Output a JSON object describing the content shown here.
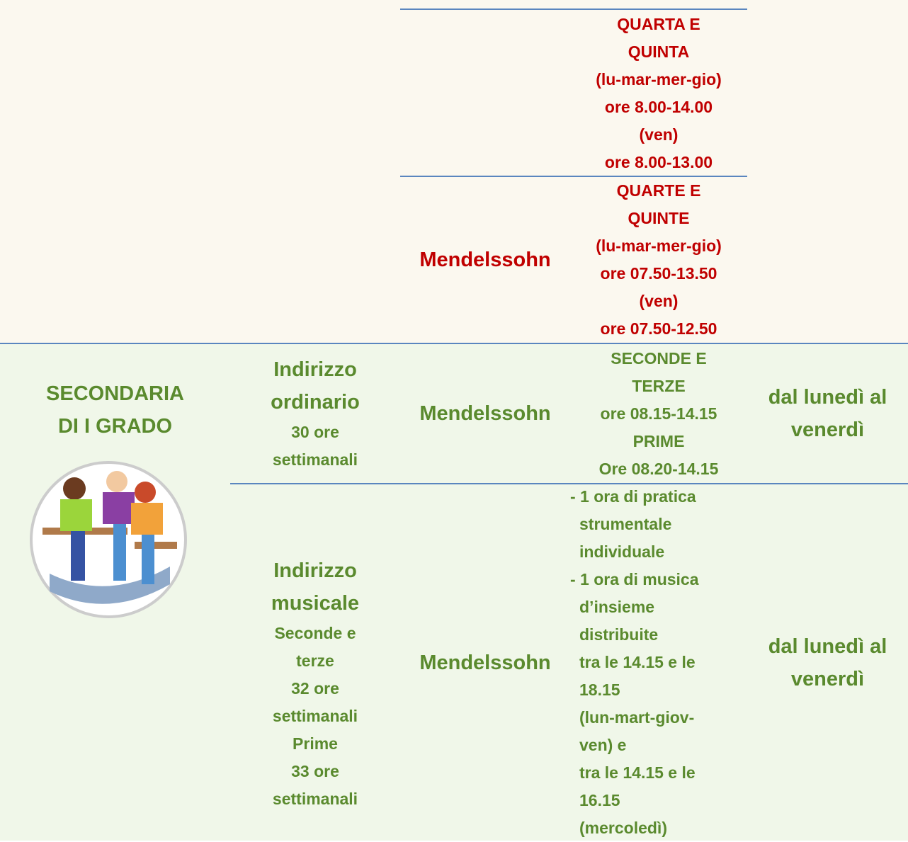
{
  "primaria": {
    "rows": [
      {
        "schedule": [
          "QUARTA E",
          "QUINTA",
          "(lu-mar-mer-gio)",
          "ore 8.00-14.00",
          "(ven)",
          "ore 8.00-13.00"
        ]
      },
      {
        "school": "Mendelssohn",
        "schedule": [
          "QUARTE E",
          "QUINTE",
          "(lu-mar-mer-gio)",
          "ore 07.50-13.50",
          "(ven)",
          "ore 07.50-12.50"
        ]
      }
    ]
  },
  "secondaria": {
    "level": [
      "SECONDARIA",
      "DI I GRADO"
    ],
    "rows": [
      {
        "title": [
          "Indirizzo",
          "ordinario"
        ],
        "details": [
          "30 ore",
          "settimanali"
        ],
        "school": "Mendelssohn",
        "schedule": [
          "SECONDE E",
          "TERZE",
          "ore 08.15-14.15",
          "PRIME",
          "Ore 08.20-14.15"
        ],
        "days": [
          "dal lunedì al",
          "venerdì"
        ]
      },
      {
        "title": [
          "Indirizzo",
          "musicale"
        ],
        "details": [
          "Seconde e",
          "terze",
          "32 ore",
          "settimanali",
          "Prime",
          "33 ore",
          "settimanali"
        ],
        "school": "Mendelssohn",
        "schedule": [
          "- 1 ora di pratica",
          "strumentale",
          "individuale",
          "- 1 ora di musica",
          "d’insieme",
          "distribuite",
          "tra le 14.15 e le",
          "18.15",
          "(lun-mart-giov-",
          "ven) e",
          "tra le 14.15 e le",
          "16.15",
          "(mercoledì)"
        ],
        "days": [
          "dal lunedì al",
          "venerdì"
        ]
      }
    ]
  }
}
